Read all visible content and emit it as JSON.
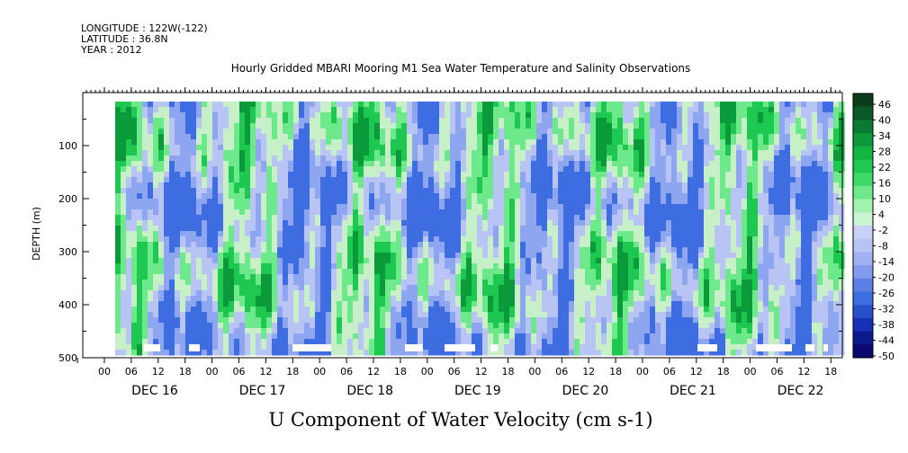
{
  "header": {
    "longitude": "LONGITUDE : 122W(-122)",
    "latitude": "LATITUDE : 36.8N",
    "year": "YEAR : 2012"
  },
  "title": "Hourly Gridded MBARI Mooring M1 Sea Water Temperature and Salinity Observations",
  "bottom_title": "U Component of Water Velocity (cm s-1)",
  "chart_data": {
    "type": "heatmap",
    "title": "Hourly Gridded MBARI Mooring M1 Sea Water Temperature and Salinity Observations",
    "ylabel": "DEPTH (m)",
    "xlabel": "",
    "ylim": [
      500,
      0
    ],
    "y_axis_inverted": true,
    "y_ticks": [
      100,
      200,
      300,
      400,
      500
    ],
    "x_hour_ticks": [
      "00",
      "06",
      "12",
      "18"
    ],
    "x_days": [
      "DEC 16",
      "DEC 17",
      "DEC 18",
      "DEC 19",
      "DEC 20",
      "DEC 21",
      "DEC 22"
    ],
    "colorbar": {
      "labels": [
        "46",
        "40",
        "34",
        "28",
        "22",
        "16",
        "10",
        "4",
        "-2",
        "-8",
        "-14",
        "-20",
        "-26",
        "-32",
        "-38",
        "-44",
        "-50"
      ],
      "range": [
        -50,
        50
      ],
      "colors_low_to_high": [
        "#0a0a6e",
        "#1830b8",
        "#3d6de0",
        "#8ea6f0",
        "#b8c4f4",
        "#c8f0c8",
        "#6de88a",
        "#1ec850",
        "#0b9a3a",
        "#0a5a28"
      ]
    },
    "grid": false,
    "legend": "colorbar-right"
  }
}
